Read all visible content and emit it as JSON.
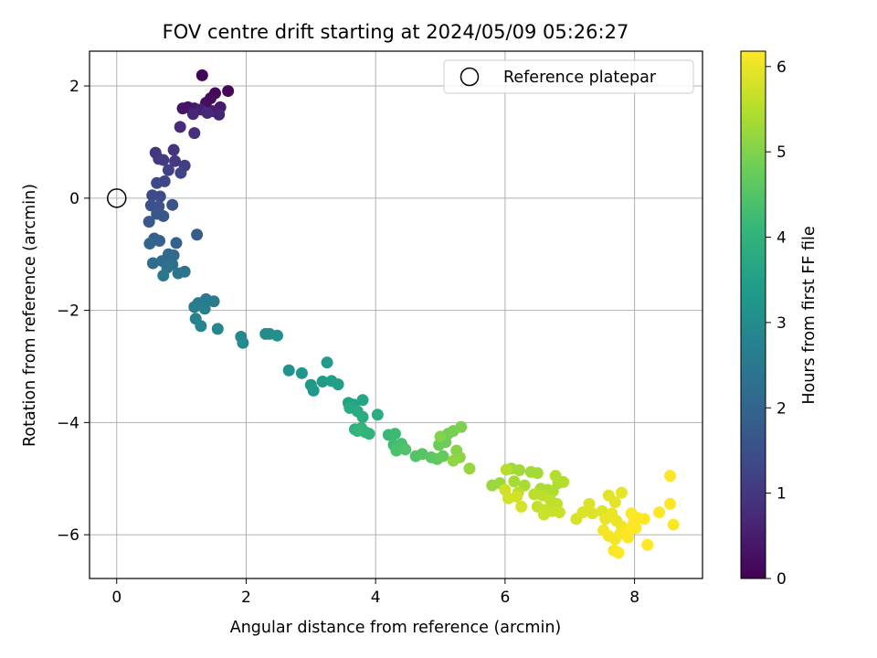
{
  "chart_data": {
    "type": "scatter",
    "title": "FOV centre drift starting at 2024/05/09 05:26:27",
    "xlabel": "Angular distance from reference (arcmin)",
    "ylabel": "Rotation from reference (arcmin)",
    "xlim": [
      -0.42,
      9.05
    ],
    "ylim": [
      -6.78,
      2.62
    ],
    "x_ticks": [
      0,
      2,
      4,
      6,
      8
    ],
    "y_ticks": [
      2,
      0,
      -2,
      -4,
      -6
    ],
    "x_tick_labels": [
      "0",
      "2",
      "4",
      "6",
      "8"
    ],
    "y_tick_labels": [
      "2",
      "0",
      "−2",
      "−4",
      "−6"
    ],
    "grid": true,
    "legend": {
      "placement": "top-right",
      "entries": [
        "Reference platepar"
      ]
    },
    "reference_point": {
      "x": 0,
      "y": 0,
      "marker": "open-circle",
      "label": "Reference platepar"
    },
    "colorbar": {
      "label": "Hours from first FF file",
      "colormap": "viridis",
      "range": [
        0,
        6.18
      ],
      "ticks": [
        0,
        1,
        2,
        3,
        4,
        5,
        6
      ],
      "tick_labels": [
        "0",
        "1",
        "2",
        "3",
        "4",
        "5",
        "6"
      ]
    },
    "points": [
      [
        1.32,
        2.19,
        0.05
      ],
      [
        1.72,
        1.91,
        0.1
      ],
      [
        1.52,
        1.87,
        0.15
      ],
      [
        1.45,
        1.78,
        0.2
      ],
      [
        1.38,
        1.7,
        0.25
      ],
      [
        1.1,
        1.62,
        0.3
      ],
      [
        1.02,
        1.6,
        0.35
      ],
      [
        1.2,
        1.6,
        0.4
      ],
      [
        1.6,
        1.62,
        0.45
      ],
      [
        1.48,
        1.55,
        0.5
      ],
      [
        1.3,
        1.58,
        0.55
      ],
      [
        1.58,
        1.49,
        0.6
      ],
      [
        1.18,
        1.5,
        0.65
      ],
      [
        1.4,
        1.52,
        0.7
      ],
      [
        0.98,
        1.27,
        0.75
      ],
      [
        1.2,
        1.16,
        0.8
      ],
      [
        0.88,
        0.86,
        0.9
      ],
      [
        0.6,
        0.81,
        0.95
      ],
      [
        0.65,
        0.7,
        1.0
      ],
      [
        0.9,
        0.66,
        1.05
      ],
      [
        0.72,
        0.68,
        1.1
      ],
      [
        1.05,
        0.58,
        1.15
      ],
      [
        0.8,
        0.5,
        1.2
      ],
      [
        0.99,
        0.45,
        1.25
      ],
      [
        0.74,
        0.3,
        1.3
      ],
      [
        0.62,
        0.27,
        1.35
      ],
      [
        0.55,
        0.05,
        1.4
      ],
      [
        0.67,
        0.03,
        1.45
      ],
      [
        0.53,
        -0.13,
        1.5
      ],
      [
        0.65,
        -0.15,
        1.55
      ],
      [
        0.86,
        -0.12,
        1.6
      ],
      [
        0.62,
        -0.28,
        1.65
      ],
      [
        0.72,
        -0.32,
        1.7
      ],
      [
        0.5,
        -0.42,
        1.75
      ],
      [
        1.24,
        -0.65,
        1.8
      ],
      [
        0.58,
        -0.72,
        1.85
      ],
      [
        0.66,
        -0.76,
        1.9
      ],
      [
        0.92,
        -0.8,
        1.95
      ],
      [
        0.51,
        -0.81,
        2.0
      ],
      [
        0.8,
        -1.0,
        2.05
      ],
      [
        0.88,
        -1.02,
        2.1
      ],
      [
        0.7,
        -1.12,
        2.15
      ],
      [
        0.56,
        -1.16,
        2.2
      ],
      [
        0.86,
        -1.18,
        2.25
      ],
      [
        0.78,
        -1.24,
        2.3
      ],
      [
        1.05,
        -1.31,
        2.35
      ],
      [
        0.95,
        -1.34,
        2.4
      ],
      [
        0.72,
        -1.38,
        2.45
      ],
      [
        1.38,
        -1.8,
        2.5
      ],
      [
        1.5,
        -1.84,
        2.55
      ],
      [
        1.26,
        -1.87,
        2.6
      ],
      [
        1.2,
        -1.94,
        2.65
      ],
      [
        1.36,
        -1.97,
        2.7
      ],
      [
        1.22,
        -2.15,
        2.75
      ],
      [
        1.3,
        -2.28,
        2.8
      ],
      [
        1.56,
        -2.33,
        2.85
      ],
      [
        1.92,
        -2.47,
        2.9
      ],
      [
        1.95,
        -2.58,
        2.95
      ],
      [
        2.3,
        -2.42,
        3.0
      ],
      [
        2.36,
        -2.42,
        3.05
      ],
      [
        2.48,
        -2.45,
        3.1
      ],
      [
        2.66,
        -3.07,
        3.15
      ],
      [
        2.86,
        -3.12,
        3.2
      ],
      [
        3.0,
        -3.33,
        3.25
      ],
      [
        3.04,
        -3.43,
        3.3
      ],
      [
        3.25,
        -2.93,
        3.35
      ],
      [
        3.18,
        -3.27,
        3.4
      ],
      [
        3.32,
        -3.26,
        3.45
      ],
      [
        3.42,
        -3.32,
        3.5
      ],
      [
        3.58,
        -3.65,
        3.55
      ],
      [
        3.66,
        -3.68,
        3.6
      ],
      [
        3.8,
        -3.6,
        3.65
      ],
      [
        3.6,
        -3.74,
        3.7
      ],
      [
        3.72,
        -3.8,
        3.75
      ],
      [
        3.8,
        -3.9,
        3.8
      ],
      [
        4.03,
        -3.86,
        3.85
      ],
      [
        3.68,
        -4.12,
        3.9
      ],
      [
        3.78,
        -4.1,
        3.95
      ],
      [
        3.9,
        -4.2,
        4.0
      ],
      [
        3.84,
        -4.17,
        4.05
      ],
      [
        3.72,
        -4.15,
        4.1
      ],
      [
        4.2,
        -4.22,
        4.15
      ],
      [
        4.3,
        -4.2,
        4.2
      ],
      [
        4.28,
        -4.4,
        4.25
      ],
      [
        4.36,
        -4.45,
        4.3
      ],
      [
        4.4,
        -4.38,
        4.35
      ],
      [
        4.32,
        -4.5,
        4.4
      ],
      [
        4.46,
        -4.48,
        4.45
      ],
      [
        4.62,
        -4.6,
        4.5
      ],
      [
        4.72,
        -4.56,
        4.55
      ],
      [
        4.86,
        -4.62,
        4.6
      ],
      [
        4.95,
        -4.65,
        4.65
      ],
      [
        5.04,
        -4.6,
        4.7
      ],
      [
        4.98,
        -4.4,
        4.75
      ],
      [
        5.08,
        -4.35,
        4.8
      ],
      [
        5.12,
        -4.2,
        4.85
      ],
      [
        5.2,
        -4.15,
        4.9
      ],
      [
        5.32,
        -4.08,
        4.95
      ],
      [
        5.0,
        -4.25,
        5.0
      ],
      [
        5.25,
        -4.5,
        5.05
      ],
      [
        5.3,
        -4.62,
        5.1
      ],
      [
        5.2,
        -4.68,
        5.15
      ],
      [
        5.45,
        -4.82,
        5.2
      ],
      [
        5.8,
        -5.12,
        5.22
      ],
      [
        5.92,
        -5.08,
        5.25
      ],
      [
        6.1,
        -4.82,
        5.28
      ],
      [
        6.22,
        -4.85,
        5.3
      ],
      [
        6.4,
        -4.88,
        5.32
      ],
      [
        6.5,
        -4.9,
        5.34
      ],
      [
        6.14,
        -5.05,
        5.36
      ],
      [
        6.3,
        -5.12,
        5.38
      ],
      [
        6.55,
        -5.18,
        5.4
      ],
      [
        6.66,
        -5.2,
        5.42
      ],
      [
        6.74,
        -5.22,
        5.44
      ],
      [
        6.82,
        -5.08,
        5.46
      ],
      [
        6.78,
        -4.95,
        5.48
      ],
      [
        6.9,
        -5.06,
        5.5
      ],
      [
        6.02,
        -4.84,
        5.52
      ],
      [
        6.2,
        -5.25,
        5.54
      ],
      [
        6.45,
        -5.28,
        5.56
      ],
      [
        6.58,
        -5.3,
        5.58
      ],
      [
        6.7,
        -5.38,
        5.6
      ],
      [
        6.8,
        -5.45,
        5.62
      ],
      [
        6.5,
        -5.5,
        5.64
      ],
      [
        6.62,
        -5.56,
        5.66
      ],
      [
        6.72,
        -5.58,
        5.68
      ],
      [
        6.84,
        -5.6,
        5.7
      ],
      [
        6.6,
        -5.64,
        5.72
      ],
      [
        6.0,
        -5.2,
        5.74
      ],
      [
        6.05,
        -5.35,
        5.76
      ],
      [
        6.18,
        -5.32,
        5.78
      ],
      [
        6.25,
        -5.5,
        5.8
      ],
      [
        7.1,
        -5.72,
        5.82
      ],
      [
        7.2,
        -5.6,
        5.84
      ],
      [
        7.3,
        -5.45,
        5.86
      ],
      [
        7.35,
        -5.62,
        5.88
      ],
      [
        7.5,
        -5.58,
        5.9
      ],
      [
        7.6,
        -5.3,
        5.92
      ],
      [
        7.7,
        -5.42,
        5.94
      ],
      [
        7.8,
        -5.25,
        5.96
      ],
      [
        7.55,
        -5.72,
        5.98
      ],
      [
        7.65,
        -5.62,
        6.0
      ],
      [
        7.72,
        -5.75,
        6.02
      ],
      [
        7.8,
        -5.85,
        6.04
      ],
      [
        7.52,
        -5.92,
        6.06
      ],
      [
        7.6,
        -6.02,
        6.08
      ],
      [
        7.7,
        -6.08,
        6.1
      ],
      [
        7.78,
        -5.98,
        6.12
      ],
      [
        7.68,
        -6.28,
        6.14
      ],
      [
        7.75,
        -6.32,
        6.15
      ],
      [
        7.95,
        -5.62,
        6.16
      ],
      [
        8.05,
        -5.7,
        6.17
      ],
      [
        8.15,
        -5.72,
        6.18
      ],
      [
        7.98,
        -5.8,
        6.18
      ],
      [
        7.9,
        -5.95,
        6.18
      ],
      [
        8.2,
        -6.18,
        6.18
      ],
      [
        8.38,
        -5.6,
        6.18
      ],
      [
        8.55,
        -4.95,
        6.18
      ],
      [
        8.55,
        -5.45,
        6.18
      ],
      [
        8.6,
        -5.82,
        6.18
      ],
      [
        7.9,
        -6.05,
        6.18
      ],
      [
        8.02,
        -5.88,
        6.18
      ]
    ]
  }
}
